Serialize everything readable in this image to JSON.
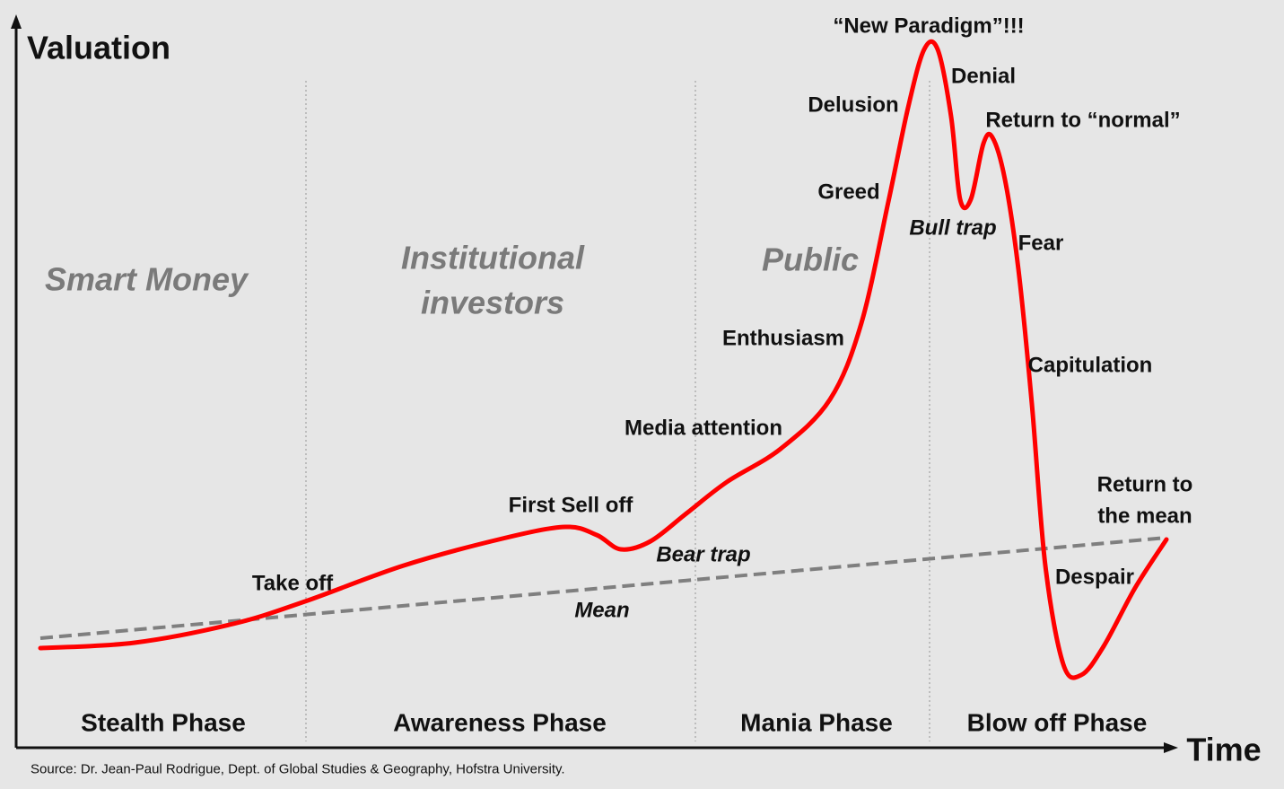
{
  "axes": {
    "y_label": "Valuation",
    "x_label": "Time"
  },
  "groups": [
    {
      "lines": [
        "Smart Money"
      ]
    },
    {
      "lines": [
        "Institutional",
        "investors"
      ]
    },
    {
      "lines": [
        "Public"
      ]
    }
  ],
  "stages": [
    {
      "lines": [
        "Take off"
      ]
    },
    {
      "lines": [
        "First Sell off"
      ]
    },
    {
      "lines": [
        "Bear trap"
      ]
    },
    {
      "lines": [
        "Media attention"
      ]
    },
    {
      "lines": [
        "Enthusiasm"
      ]
    },
    {
      "lines": [
        "Greed"
      ]
    },
    {
      "lines": [
        "Delusion"
      ]
    },
    {
      "lines": [
        "“New Paradigm”!!!"
      ]
    },
    {
      "lines": [
        "Denial"
      ]
    },
    {
      "lines": [
        "Return to “normal”"
      ]
    },
    {
      "lines": [
        "Bull trap"
      ]
    },
    {
      "lines": [
        "Fear"
      ]
    },
    {
      "lines": [
        "Capitulation"
      ]
    },
    {
      "lines": [
        "Despair"
      ]
    },
    {
      "lines": [
        "Return to",
        "the mean"
      ]
    }
  ],
  "mean_label": "Mean",
  "phases": [
    "Stealth Phase",
    "Awareness Phase",
    "Mania Phase",
    "Blow off Phase"
  ],
  "source": "Source: Dr. Jean-Paul Rodrigue, Dept. of Global Studies & Geography, Hofstra University."
}
